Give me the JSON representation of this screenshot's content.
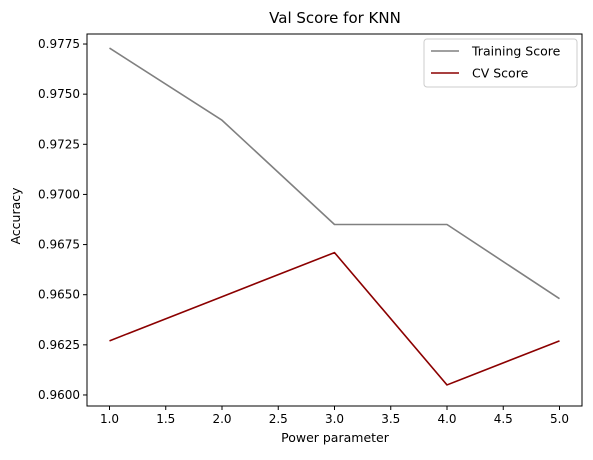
{
  "chart_data": {
    "type": "line",
    "title": "Val Score for KNN",
    "xlabel": "Power parameter",
    "ylabel": "Accuracy",
    "xlim": [
      0.8,
      5.2
    ],
    "ylim": [
      0.95945,
      0.978
    ],
    "x_ticks": [
      1.0,
      1.5,
      2.0,
      2.5,
      3.0,
      3.5,
      4.0,
      4.5,
      5.0
    ],
    "x_tick_labels": [
      "1.0",
      "1.5",
      "2.0",
      "2.5",
      "3.0",
      "3.5",
      "4.0",
      "4.5",
      "5.0"
    ],
    "y_ticks": [
      0.96,
      0.9625,
      0.965,
      0.9675,
      0.97,
      0.9725,
      0.975,
      0.9775
    ],
    "y_tick_labels": [
      "0.9600",
      "0.9625",
      "0.9650",
      "0.9675",
      "0.9700",
      "0.9725",
      "0.9750",
      "0.9775"
    ],
    "x": [
      1,
      2,
      3,
      4,
      5
    ],
    "series": [
      {
        "name": "Training Score",
        "color": "#808080",
        "values": [
          0.9773,
          0.9737,
          0.9685,
          0.9685,
          0.9648
        ]
      },
      {
        "name": "CV Score",
        "color": "#8b0000",
        "values": [
          0.9627,
          0.9649,
          0.9671,
          0.9605,
          0.9627
        ]
      }
    ],
    "grid": false,
    "legend_position": "upper-right"
  }
}
